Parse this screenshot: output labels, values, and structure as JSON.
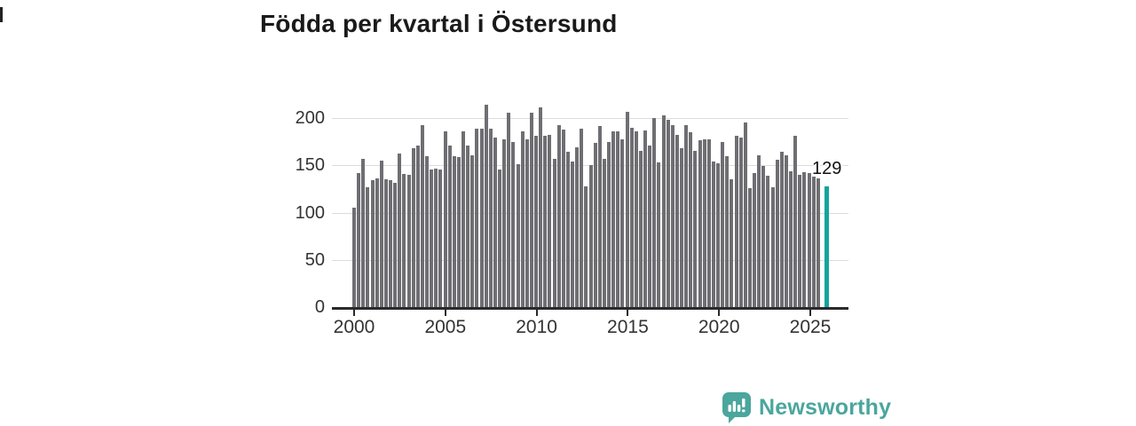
{
  "title": "Födda per kvartal i Östersund",
  "annotation": {
    "label": "129"
  },
  "logo": {
    "text": "Newsworthy",
    "color": "#4ba69d"
  },
  "colors": {
    "bar": "#6f6e73",
    "highlight": "#13a49c",
    "grid": "#dcdcdc",
    "axis": "#2a2a2a",
    "axis_text": "#333333",
    "title_text": "#1a1a1a"
  },
  "chart_data": {
    "type": "bar",
    "title": "Födda per kvartal i Östersund",
    "xlabel": "",
    "ylabel": "",
    "x_start": "2000 Q1",
    "x_end": "2025 Q4",
    "frequency": "quarterly",
    "grid": true,
    "ylim": [
      0,
      220
    ],
    "y_ticks": [
      0,
      50,
      100,
      150,
      200
    ],
    "y_tick_labels": [
      "0",
      "50",
      "100",
      "150",
      "200"
    ],
    "x_tick_labels": [
      "2000",
      "2005",
      "2010",
      "2015",
      "2020",
      "2025"
    ],
    "series": [
      {
        "name": "Födda per kvartal",
        "values": [
          106,
          143,
          158,
          128,
          135,
          137,
          156,
          136,
          135,
          133,
          164,
          142,
          141,
          169,
          172,
          194,
          161,
          147,
          148,
          147,
          187,
          172,
          161,
          160,
          187,
          172,
          162,
          190,
          190,
          215,
          190,
          180,
          147,
          179,
          207,
          176,
          152,
          187,
          179,
          207,
          182,
          212,
          182,
          183,
          158,
          194,
          189,
          165,
          155,
          170,
          190,
          129,
          151,
          175,
          193,
          158,
          176,
          187,
          187,
          179,
          208,
          191,
          187,
          166,
          188,
          172,
          201,
          154,
          204,
          199,
          194,
          183,
          169,
          194,
          186,
          166,
          178,
          179,
          179,
          155,
          153,
          176,
          161,
          136,
          182,
          180,
          196,
          127,
          143,
          162,
          150,
          140,
          128,
          157,
          165,
          162,
          145,
          182,
          141,
          144,
          143,
          139,
          137,
          129
        ]
      }
    ],
    "highlight": {
      "index": 103,
      "value": 129,
      "label": "129",
      "color": "#13a49c"
    },
    "legend": "none"
  }
}
